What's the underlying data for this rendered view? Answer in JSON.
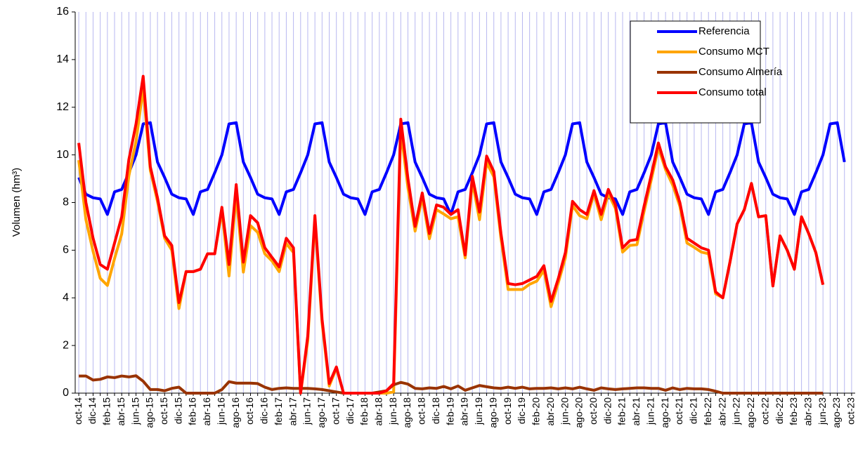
{
  "chart_data": {
    "type": "line",
    "y_label": "Volumen (hm³)",
    "categories": [
      "oct-14",
      null,
      "dic-14",
      null,
      "feb-15",
      null,
      "abr-15",
      null,
      "jun-15",
      null,
      "ago-15",
      null,
      "oct-15",
      null,
      "dic-15",
      null,
      "feb-16",
      null,
      "abr-16",
      null,
      "jun-16",
      null,
      "ago-16",
      null,
      "oct-16",
      null,
      "dic-16",
      null,
      "feb-17",
      null,
      "abr-17",
      null,
      "jun-17",
      null,
      "ago-17",
      null,
      "oct-17",
      null,
      "dic-17",
      null,
      "feb-18",
      null,
      "abr-18",
      null,
      "jun-18",
      null,
      "ago-18",
      null,
      "oct-18",
      null,
      "dic-18",
      null,
      "feb-19",
      null,
      "abr-19",
      null,
      "jun-19",
      null,
      "ago-19",
      null,
      "oct-19",
      null,
      "dic-19",
      null,
      "feb-20",
      null,
      "abr-20",
      null,
      "jun-20",
      null,
      "ago-20",
      null,
      "oct-20",
      null,
      "dic-20",
      null,
      "feb-21",
      null,
      "abr-21",
      null,
      "jun-21",
      null,
      "ago-21",
      null,
      "oct-21",
      null,
      "dic-21",
      null,
      "feb-22",
      null,
      "abr-22",
      null,
      "jun-22",
      null,
      "ago-22",
      null,
      "oct-22",
      null,
      "dic-22",
      null,
      "feb-23",
      null,
      "abr-23",
      null,
      "jun-23",
      null,
      "ago-23",
      null,
      "oct-23"
    ],
    "series": [
      {
        "name": "Referencia",
        "color": "#0000ff",
        "values": [
          9.05,
          8.35,
          8.2,
          8.15,
          7.5,
          8.45,
          8.55,
          9.25,
          10.0,
          11.3,
          11.35,
          9.7,
          9.05,
          8.35,
          8.2,
          8.15,
          7.5,
          8.45,
          8.55,
          9.25,
          10.0,
          11.3,
          11.35,
          9.7,
          9.05,
          8.35,
          8.2,
          8.15,
          7.5,
          8.45,
          8.55,
          9.25,
          10.0,
          11.3,
          11.35,
          9.7,
          9.05,
          8.35,
          8.2,
          8.15,
          7.5,
          8.45,
          8.55,
          9.25,
          10.0,
          11.3,
          11.35,
          9.7,
          9.05,
          8.35,
          8.2,
          8.15,
          7.5,
          8.45,
          8.55,
          9.25,
          10.0,
          11.3,
          11.35,
          9.7,
          9.05,
          8.35,
          8.2,
          8.15,
          7.5,
          8.45,
          8.55,
          9.25,
          10.0,
          11.3,
          11.35,
          9.7,
          9.05,
          8.35,
          8.2,
          8.15,
          7.5,
          8.45,
          8.55,
          9.25,
          10.0,
          11.3,
          11.35,
          9.7,
          9.05,
          8.35,
          8.2,
          8.15,
          7.5,
          8.45,
          8.55,
          9.25,
          10.0,
          11.3,
          11.35,
          9.7,
          9.05,
          8.35,
          8.2,
          8.15,
          7.5,
          8.45,
          8.55,
          9.25,
          10.0,
          11.3,
          11.35,
          9.7,
          null
        ]
      },
      {
        "name": "Consumo MCT",
        "color": "#ffa500",
        "values": [
          9.78,
          7.28,
          5.95,
          4.82,
          4.52,
          5.65,
          6.68,
          9.12,
          10.57,
          12.8,
          9.35,
          8.05,
          6.5,
          6.0,
          3.55,
          5.1,
          5.1,
          5.2,
          5.85,
          5.85,
          7.65,
          4.92,
          8.33,
          5.08,
          7.03,
          6.75,
          5.85,
          5.55,
          5.1,
          6.28,
          5.9,
          0,
          2.2,
          7.27,
          2.95,
          0.3,
          1.05,
          0,
          0,
          0,
          0,
          0,
          0,
          0,
          0.05,
          11.05,
          8.62,
          6.8,
          8.22,
          6.48,
          7.7,
          7.52,
          7.32,
          7.4,
          5.68,
          8.88,
          7.28,
          9.68,
          9.08,
          6.5,
          4.35,
          4.35,
          4.35,
          4.57,
          4.7,
          5.15,
          3.63,
          4.62,
          5.68,
          7.87,
          7.45,
          7.32,
          8.38,
          7.28,
          8.37,
          7.75,
          5.92,
          6.2,
          6.23,
          7.63,
          8.95,
          10.3,
          9.38,
          8.73,
          7.85,
          6.3,
          6.12,
          5.92,
          5.85,
          4.17,
          4.0,
          5.5,
          7.1,
          7.7,
          8.8,
          7.4,
          7.45,
          4.5,
          6.6,
          6.0,
          5.2,
          7.4,
          6.7,
          5.9,
          4.55,
          null,
          null,
          null,
          null
        ]
      },
      {
        "name": "Consumo Almería",
        "color": "#993300",
        "values": [
          0.72,
          0.72,
          0.55,
          0.58,
          0.68,
          0.65,
          0.72,
          0.68,
          0.73,
          0.5,
          0.15,
          0.15,
          0.1,
          0.2,
          0.25,
          0,
          0,
          0,
          0,
          0,
          0.15,
          0.48,
          0.42,
          0.42,
          0.42,
          0.4,
          0.25,
          0.15,
          0.2,
          0.22,
          0.2,
          0.2,
          0.2,
          0.18,
          0.15,
          0.1,
          0.05,
          0,
          0,
          0,
          0,
          0,
          0.05,
          0.1,
          0.35,
          0.45,
          0.38,
          0.2,
          0.18,
          0.22,
          0.2,
          0.28,
          0.18,
          0.3,
          0.12,
          0.22,
          0.32,
          0.27,
          0.22,
          0.2,
          0.25,
          0.2,
          0.25,
          0.18,
          0.2,
          0.2,
          0.22,
          0.18,
          0.22,
          0.18,
          0.25,
          0.18,
          0.12,
          0.22,
          0.18,
          0.15,
          0.18,
          0.2,
          0.22,
          0.22,
          0.2,
          0.2,
          0.12,
          0.22,
          0.15,
          0.2,
          0.18,
          0.18,
          0.15,
          0.08,
          0,
          0,
          0,
          0,
          0,
          0,
          0,
          0,
          0,
          0,
          0,
          0,
          0,
          0,
          0,
          null,
          null,
          null,
          null
        ]
      },
      {
        "name": "Consumo total",
        "color": "#ff0000",
        "values": [
          10.5,
          8.0,
          6.5,
          5.4,
          5.2,
          6.3,
          7.4,
          9.8,
          11.3,
          13.3,
          9.5,
          8.2,
          6.6,
          6.2,
          3.8,
          5.1,
          5.1,
          5.2,
          5.85,
          5.85,
          7.8,
          5.4,
          8.75,
          5.5,
          7.45,
          7.15,
          6.1,
          5.7,
          5.3,
          6.5,
          6.1,
          0,
          2.4,
          7.45,
          3.1,
          0.4,
          1.1,
          0,
          0,
          0,
          0,
          0,
          0,
          0.1,
          0.4,
          11.5,
          9.0,
          7.0,
          8.4,
          6.7,
          7.9,
          7.8,
          7.5,
          7.7,
          5.8,
          9.1,
          7.6,
          9.95,
          9.3,
          6.7,
          4.6,
          4.55,
          4.6,
          4.75,
          4.9,
          5.35,
          3.85,
          4.8,
          5.9,
          8.05,
          7.7,
          7.5,
          8.5,
          7.5,
          8.55,
          7.9,
          6.1,
          6.4,
          6.45,
          7.85,
          9.15,
          10.5,
          9.5,
          8.95,
          8.0,
          6.5,
          6.3,
          6.1,
          6.0,
          4.25,
          4.0,
          5.5,
          7.1,
          7.7,
          8.8,
          7.4,
          7.45,
          4.5,
          6.6,
          6.0,
          5.2,
          7.4,
          6.7,
          5.9,
          4.55,
          null,
          null,
          null,
          null
        ]
      }
    ],
    "ylim": [
      0,
      16
    ],
    "yticks": [
      0,
      2,
      4,
      6,
      8,
      10,
      12,
      14,
      16
    ],
    "grid": "x",
    "legend": "upper right"
  }
}
